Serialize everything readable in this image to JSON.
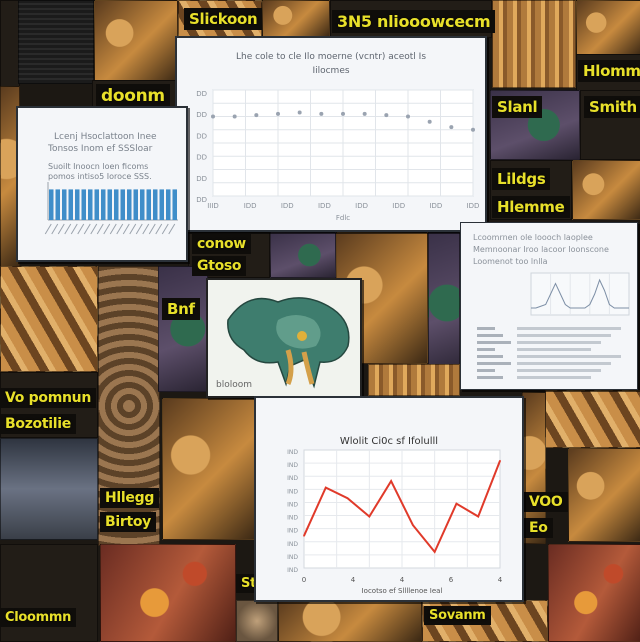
{
  "banners": {
    "b1": "Slickoon",
    "b2": "3N5 nliooowcecm",
    "b3": "doonm",
    "b4": "Hlomm",
    "b5": "Slanl",
    "b6": "Smith",
    "b7": "Lildgs",
    "b8": "Hlemme",
    "b9": "conow",
    "b10": "Gtoso",
    "b11": "Bnf",
    "b12": "Vo pomnun",
    "b13": "Bozotilie",
    "b14": "Hllegg",
    "b15": "Birtoy",
    "b16": "Cloommn",
    "b17": "Sttohn",
    "b18": "Sovanm",
    "b19": "VOO",
    "b20": "Eo",
    "b21": "bloloom"
  },
  "panel_top": {
    "title": "Lhe cole to cle Ilo moerne (vcntr) aceotl Is",
    "subtitle": "Iilocmes",
    "x_axis_title": "Fdlc"
  },
  "panel_left": {
    "line1": "Lcenj Hsoclattoon Inee",
    "line2": "Tonsos Inom ef SSSloar",
    "line3": "Suoilt Inoocn loen ficoms",
    "line4": "pomos intiso5 Ioroce SSS."
  },
  "panel_right": {
    "line1": "Lcoomrnen ole loooch laoplee",
    "line2": "Memnoonar Iroo lacoor Ioonscone",
    "line3": "Loomenot too lnlla"
  },
  "panel_bottom": {
    "title": "Wlolit Ci0c sf Ifolulll",
    "x_axis_title": "Iocotso ef Sllllenoe Ieal"
  },
  "chart_data": [
    {
      "type": "line",
      "title": "Lhe cole to cle Ilo moerne (vcntr) aceotl Is",
      "subtitle": "Iilocmes",
      "xlabel": "Fdlc",
      "x_ticks": [
        "IIID",
        "IDD",
        "IDD",
        "IDD",
        "IDD",
        "IDD",
        "IDD",
        "IDD"
      ],
      "y_ticks": [
        "DD",
        "DD",
        "DD",
        "DD",
        "DD",
        "DD"
      ],
      "x": [
        1,
        2,
        3,
        4,
        5,
        6,
        7,
        8,
        9,
        10,
        11,
        12,
        13
      ],
      "values": [
        30,
        30,
        30.5,
        31,
        31.5,
        31,
        31,
        31,
        30.5,
        30,
        28,
        26,
        25
      ],
      "ylim": [
        0,
        40
      ],
      "grid": true,
      "color": "#9aa3b0"
    },
    {
      "type": "bar",
      "categories": [
        "a",
        "b",
        "c",
        "d",
        "e",
        "f",
        "g",
        "h",
        "i",
        "j",
        "k",
        "l",
        "m",
        "n",
        "o",
        "p",
        "q",
        "r",
        "s",
        "t"
      ],
      "values": [
        9,
        9,
        9,
        9,
        9,
        9,
        9,
        9,
        9,
        9,
        9,
        9,
        9,
        9,
        9,
        9,
        9,
        9,
        9,
        9
      ],
      "ylim": [
        0,
        10
      ],
      "color": "#3f8ec9"
    },
    {
      "type": "line",
      "x": [
        0,
        1,
        2,
        3,
        4,
        5,
        6,
        7,
        8,
        9,
        10,
        11,
        12,
        13,
        14,
        15,
        16,
        17,
        18,
        19,
        20
      ],
      "values": [
        2,
        2,
        2.5,
        3,
        6,
        9,
        6,
        3,
        2,
        2,
        2,
        2,
        3,
        6,
        10,
        7,
        3,
        2,
        2,
        2,
        2
      ],
      "ylim": [
        0,
        12
      ],
      "grid": true,
      "color": "#7d8fa6"
    },
    {
      "type": "line",
      "title": "Wlolit Ci0c sf Ifolulll",
      "xlabel": "Iocotso ef Sllllenoe Ieal",
      "x_ticks": [
        "0",
        "4",
        "4",
        "6",
        "4"
      ],
      "y_ticks": [
        "IND",
        "IND",
        "IND",
        "IND",
        "IND",
        "IND",
        "IND",
        "IND",
        "IND",
        "IND"
      ],
      "x": [
        0,
        1,
        2,
        3,
        4,
        5,
        6,
        7,
        8,
        9
      ],
      "values": [
        5,
        9.5,
        8.5,
        6.8,
        10.1,
        6,
        3.5,
        8,
        6.8,
        12
      ],
      "ylim": [
        2,
        13
      ],
      "grid": true,
      "color": "#e03a2a"
    }
  ]
}
